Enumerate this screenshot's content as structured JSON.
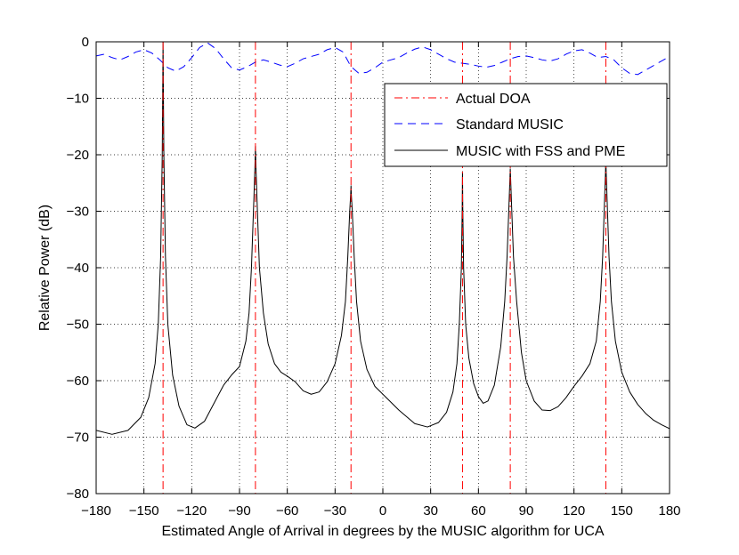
{
  "chart_data": {
    "type": "line",
    "title": "",
    "xlabel": "Estimated Angle of Arrival in degrees by the MUSIC algorithm for UCA",
    "ylabel": "Relative Power (dB)",
    "xlim": [
      -180,
      180
    ],
    "ylim": [
      -80,
      0
    ],
    "xticks": [
      -180,
      -150,
      -120,
      -90,
      -60,
      -30,
      0,
      30,
      60,
      90,
      120,
      150,
      180
    ],
    "yticks": [
      0,
      -10,
      -20,
      -30,
      -40,
      -50,
      -60,
      -70,
      -80
    ],
    "xtick_labels": [
      "−180",
      "−150",
      "−120",
      "−90",
      "−60",
      "−30",
      "0",
      "30",
      "60",
      "90",
      "120",
      "150",
      "180"
    ],
    "ytick_labels": [
      "0",
      "−10",
      "−20",
      "−30",
      "−40",
      "−50",
      "−60",
      "−70",
      "−80"
    ],
    "grid": true,
    "legend_position": "top-right",
    "series": [
      {
        "name": "Actual DOA",
        "style": "dash-dot",
        "color": "#ff0000",
        "x_lines": [
          -138,
          -80,
          -20,
          50,
          80,
          140
        ]
      },
      {
        "name": "Standard MUSIC",
        "style": "dashed",
        "color": "#0000ff",
        "x": [
          -180,
          -175,
          -170,
          -165,
          -160,
          -155,
          -150,
          -145,
          -140,
          -135,
          -130,
          -125,
          -120,
          -115,
          -110,
          -105,
          -100,
          -95,
          -90,
          -85,
          -80,
          -75,
          -70,
          -65,
          -60,
          -55,
          -50,
          -45,
          -40,
          -35,
          -30,
          -25,
          -20,
          -15,
          -10,
          -5,
          0,
          5,
          10,
          15,
          20,
          25,
          30,
          35,
          40,
          45,
          50,
          55,
          60,
          65,
          70,
          75,
          80,
          85,
          90,
          95,
          100,
          105,
          110,
          115,
          120,
          125,
          130,
          135,
          140,
          145,
          150,
          155,
          160,
          165,
          170,
          175,
          180
        ],
        "y": [
          -2.5,
          -2.2,
          -2.8,
          -3.2,
          -2.6,
          -1.8,
          -1.4,
          -2.0,
          -3.2,
          -4.6,
          -5.2,
          -4.4,
          -2.8,
          -1.0,
          -0.2,
          -1.2,
          -3.0,
          -4.6,
          -5.0,
          -4.4,
          -3.6,
          -3.2,
          -3.6,
          -4.1,
          -4.4,
          -3.8,
          -3.0,
          -2.6,
          -2.2,
          -1.4,
          -1.0,
          -1.8,
          -4.4,
          -5.6,
          -5.4,
          -4.6,
          -3.6,
          -3.2,
          -2.8,
          -2.0,
          -1.3,
          -0.9,
          -1.4,
          -2.2,
          -3.0,
          -3.6,
          -3.8,
          -4.0,
          -4.3,
          -4.5,
          -4.2,
          -3.6,
          -3.0,
          -2.6,
          -2.5,
          -2.8,
          -3.2,
          -3.4,
          -3.0,
          -2.2,
          -1.6,
          -1.4,
          -2.0,
          -2.8,
          -2.6,
          -3.2,
          -4.6,
          -5.6,
          -5.8,
          -5.0,
          -4.2,
          -3.4,
          -2.6
        ]
      },
      {
        "name": "MUSIC with FSS and PME",
        "style": "solid",
        "color": "#000000",
        "x": [
          -180,
          -170,
          -160,
          -152,
          -147,
          -143,
          -141,
          -139.5,
          -138.5,
          -138,
          -137.5,
          -136.5,
          -135,
          -132,
          -128,
          -123,
          -118,
          -112,
          -106,
          -100,
          -95,
          -90,
          -86,
          -84,
          -82.5,
          -81,
          -80.3,
          -80,
          -79.7,
          -79,
          -77.5,
          -75,
          -72,
          -68,
          -64,
          -60,
          -55,
          -50,
          -45,
          -40,
          -35,
          -30,
          -26,
          -23.5,
          -22,
          -20.8,
          -20.2,
          -20,
          -19.8,
          -19.2,
          -18,
          -16.5,
          -14,
          -10,
          -5,
          0,
          10,
          20,
          28,
          35,
          40,
          44,
          46.5,
          48,
          49.3,
          49.8,
          50,
          50.2,
          50.7,
          52,
          54,
          57,
          60,
          63,
          66,
          70,
          74,
          76.5,
          78,
          79.3,
          79.8,
          80,
          80.2,
          80.7,
          82,
          84,
          87,
          90,
          95,
          100,
          105,
          110,
          115,
          120,
          125,
          130,
          134,
          136.5,
          138,
          139.2,
          139.8,
          140,
          140.2,
          140.8,
          142,
          143.5,
          146,
          150,
          155,
          160,
          165,
          170,
          175,
          180
        ],
        "y": [
          -68.8,
          -69.5,
          -68.8,
          -66.5,
          -63,
          -57,
          -50,
          -38,
          -20,
          0,
          -20,
          -38,
          -50,
          -59,
          -64.5,
          -67.8,
          -68.4,
          -67.2,
          -64,
          -60.8,
          -59,
          -57.5,
          -53,
          -48,
          -40,
          -28,
          -22,
          -18.5,
          -22,
          -28,
          -40,
          -48,
          -53.5,
          -57,
          -58.5,
          -59.2,
          -60.2,
          -61.8,
          -62.4,
          -62,
          -60.2,
          -57,
          -52,
          -46,
          -38,
          -30,
          -27,
          -25.5,
          -27,
          -30,
          -38,
          -46,
          -53,
          -58,
          -61,
          -62.4,
          -65.2,
          -67.6,
          -68.2,
          -67.4,
          -65.6,
          -62,
          -57,
          -50,
          -40,
          -30,
          -23,
          -30,
          -40,
          -50,
          -56,
          -60.5,
          -62.8,
          -64,
          -63.6,
          -60.8,
          -54,
          -46,
          -38,
          -28,
          -24,
          -22.5,
          -24,
          -28,
          -38,
          -46,
          -55,
          -60,
          -63.6,
          -65.2,
          -65.3,
          -64.6,
          -63,
          -61,
          -59.2,
          -57,
          -53,
          -46,
          -38,
          -28,
          -23,
          -20.5,
          -23,
          -28,
          -38,
          -46,
          -53,
          -58.5,
          -62,
          -64.2,
          -65.8,
          -67,
          -67.8,
          -68.5
        ]
      }
    ]
  }
}
